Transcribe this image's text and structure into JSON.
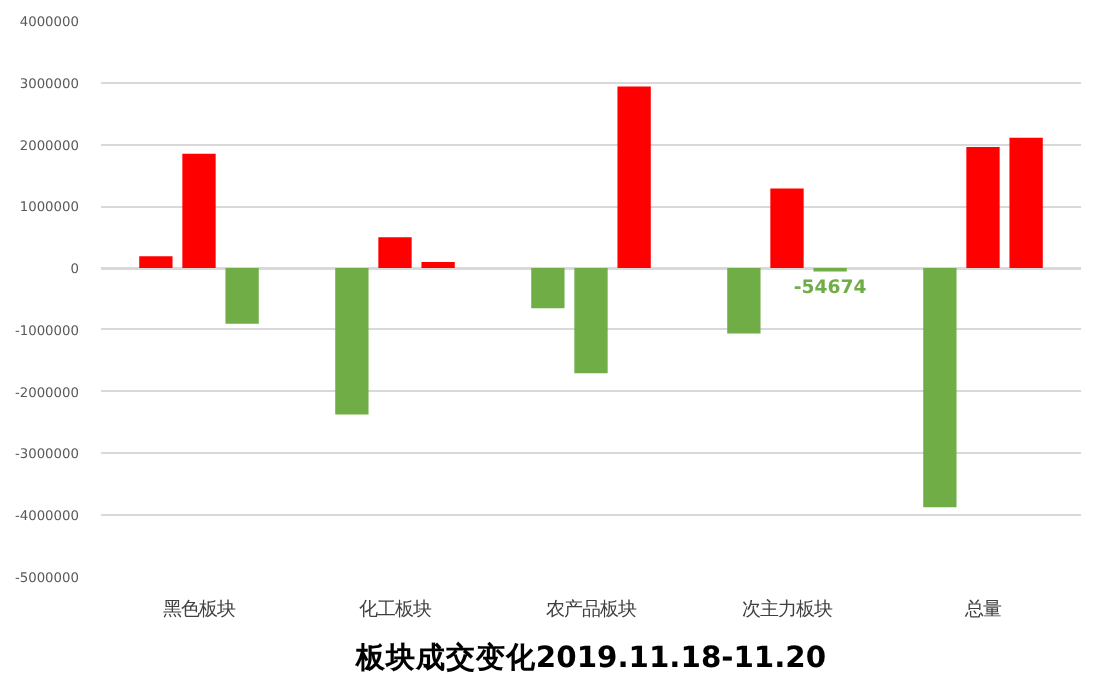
{
  "chart_data": {
    "type": "bar",
    "title": "板块成交变化2019.11.18-11.20",
    "categories": [
      "黑色板块",
      "化工板块",
      "农产品板块",
      "次主力板块",
      "总量"
    ],
    "series": [
      {
        "colors": [
          "#ff0000",
          "#70ad47",
          "#70ad47",
          "#70ad47",
          "#70ad47"
        ],
        "values": [
          190000,
          -2370000,
          -650000,
          -1060000,
          -3870000
        ]
      },
      {
        "colors": [
          "#ff0000",
          "#ff0000",
          "#70ad47",
          "#ff0000",
          "#ff0000"
        ],
        "values": [
          1850000,
          500000,
          -1700000,
          1290000,
          1960000
        ]
      },
      {
        "colors": [
          "#70ad47",
          "#ff0000",
          "#ff0000",
          "#70ad47",
          "#ff0000"
        ],
        "values": [
          -900000,
          100000,
          2940000,
          -54674,
          2110000
        ],
        "value_labels": [
          null,
          null,
          null,
          "-54674",
          null
        ]
      }
    ],
    "ylim": [
      -5000000,
      4000000
    ],
    "yticks": [
      -5000000,
      -4000000,
      -3000000,
      -2000000,
      -1000000,
      0,
      1000000,
      2000000,
      3000000,
      4000000
    ],
    "grid": "y"
  }
}
